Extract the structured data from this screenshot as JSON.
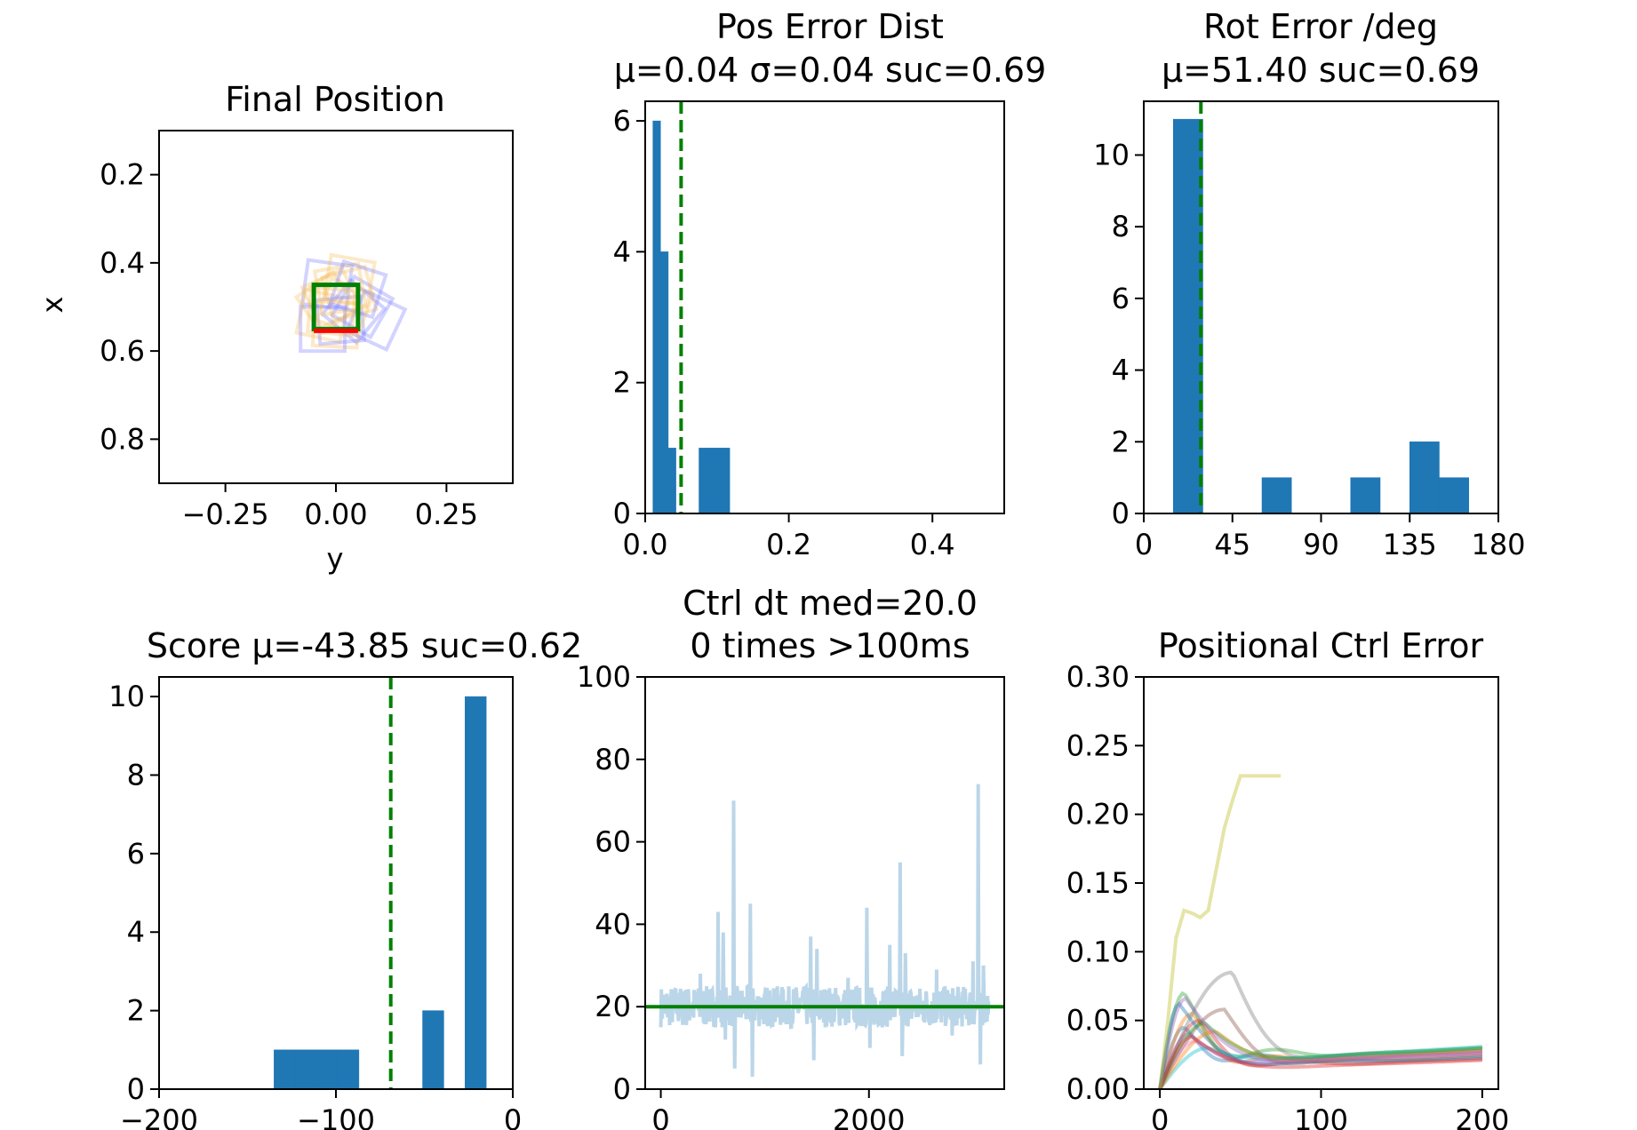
{
  "figure": {
    "background": "#ffffff",
    "bar_color": "#1f77b4",
    "ref_line_color": "#008000"
  },
  "chart_data": [
    {
      "id": "final_position",
      "type": "scatter",
      "title_lines": [
        "Final Position"
      ],
      "xlabel": "y",
      "ylabel": "x",
      "xlim": [
        -0.4,
        0.4
      ],
      "ylim": [
        0.1,
        0.9
      ],
      "y_inverted": true,
      "xticks": [
        -0.25,
        0.0,
        0.25
      ],
      "xtick_labels": [
        "−0.25",
        "0.00",
        "0.25"
      ],
      "yticks": [
        0.2,
        0.4,
        0.6,
        0.8
      ],
      "ytick_labels": [
        "0.2",
        "0.4",
        "0.6",
        "0.8"
      ],
      "goal_square": {
        "center_y": 0.0,
        "center_x": 0.5,
        "size": 0.1,
        "color": "#008000"
      },
      "goal_edge_color": "#ff0000",
      "final_poses": [
        {
          "cy": -0.02,
          "cx": 0.45,
          "angle": 8,
          "color": "#8080ff"
        },
        {
          "cy": 0.03,
          "cx": 0.47,
          "angle": -15,
          "color": "#f5c060"
        },
        {
          "cy": 0.06,
          "cx": 0.5,
          "angle": 30,
          "color": "#8080ff"
        },
        {
          "cy": -0.03,
          "cx": 0.52,
          "angle": 12,
          "color": "#f5c060"
        },
        {
          "cy": 0.01,
          "cx": 0.53,
          "angle": -5,
          "color": "#8080ff"
        },
        {
          "cy": 0.02,
          "cx": 0.5,
          "angle": 20,
          "color": "#f5c060"
        },
        {
          "cy": -0.01,
          "cx": 0.48,
          "angle": -25,
          "color": "#f5c060"
        },
        {
          "cy": 0.04,
          "cx": 0.51,
          "angle": 40,
          "color": "#8080ff"
        },
        {
          "cy": 0.0,
          "cx": 0.54,
          "angle": 3,
          "color": "#f5c060"
        },
        {
          "cy": -0.02,
          "cx": 0.49,
          "angle": -35,
          "color": "#f5c060"
        },
        {
          "cy": 0.03,
          "cx": 0.44,
          "angle": 10,
          "color": "#f5c060"
        },
        {
          "cy": 0.09,
          "cx": 0.53,
          "angle": 25,
          "color": "#8080ff"
        },
        {
          "cy": -0.03,
          "cx": 0.55,
          "angle": 0,
          "color": "#8080ff"
        },
        {
          "cy": 0.01,
          "cx": 0.46,
          "angle": -10,
          "color": "#f5c060"
        },
        {
          "cy": 0.05,
          "cx": 0.46,
          "angle": 18,
          "color": "#8080ff"
        },
        {
          "cy": -0.01,
          "cx": 0.51,
          "angle": 5,
          "color": "#f5c060"
        }
      ]
    },
    {
      "id": "pos_error_dist",
      "type": "bar",
      "title_lines": [
        "Pos Error Dist",
        "μ=0.04 σ=0.04 suc=0.69"
      ],
      "xlim": [
        0.0,
        0.5
      ],
      "ylim": [
        0,
        6.3
      ],
      "xticks": [
        0.0,
        0.2,
        0.4
      ],
      "xtick_labels": [
        "0.0",
        "0.2",
        "0.4"
      ],
      "yticks": [
        0,
        2,
        4,
        6
      ],
      "ytick_labels": [
        "0",
        "2",
        "4",
        "6"
      ],
      "bin_width": 0.0107,
      "bin_left_edges": [
        0.0107,
        0.0214,
        0.0321,
        0.0428,
        0.0535,
        0.0642,
        0.0749,
        0.0856,
        0.0963,
        0.107
      ],
      "counts": [
        6,
        4,
        1,
        0,
        0,
        0,
        1,
        1,
        1,
        1
      ],
      "threshold": 0.05
    },
    {
      "id": "rot_error",
      "type": "bar",
      "title_lines": [
        "Rot Error /deg",
        "μ=51.40 suc=0.69"
      ],
      "xlim": [
        0,
        180
      ],
      "ylim": [
        0,
        11.5
      ],
      "xticks": [
        0,
        45,
        90,
        135,
        180
      ],
      "xtick_labels": [
        "0",
        "45",
        "90",
        "135",
        "180"
      ],
      "yticks": [
        0,
        2,
        4,
        6,
        8,
        10
      ],
      "ytick_labels": [
        "0",
        "2",
        "4",
        "6",
        "8",
        "10"
      ],
      "bin_width": 15,
      "bin_left_edges": [
        15,
        30,
        45,
        60,
        75,
        90,
        105,
        120,
        135,
        150
      ],
      "counts": [
        11,
        0,
        0,
        1,
        0,
        0,
        1,
        0,
        2,
        1
      ],
      "threshold": 29
    },
    {
      "id": "score",
      "type": "bar",
      "title_lines": [
        "Score μ=-43.85 suc=0.62"
      ],
      "xlim": [
        -200,
        0
      ],
      "ylim": [
        0,
        10.5
      ],
      "xticks": [
        -200,
        -100,
        0
      ],
      "xtick_labels": [
        "−200",
        "−100",
        "0"
      ],
      "yticks": [
        0,
        2,
        4,
        6,
        8,
        10
      ],
      "ytick_labels": [
        "0",
        "2",
        "4",
        "6",
        "8",
        "10"
      ],
      "bin_width": 12,
      "bin_left_edges": [
        -135,
        -123,
        -111,
        -99,
        -87,
        -75,
        -63,
        -51,
        -39,
        -27
      ],
      "counts": [
        1,
        1,
        1,
        1,
        0,
        0,
        0,
        2,
        0,
        10
      ],
      "threshold": -69
    },
    {
      "id": "ctrl_dt",
      "type": "line",
      "title_lines": [
        "Ctrl dt med=20.0",
        "0 times >100ms"
      ],
      "xlim": [
        -150,
        3300
      ],
      "ylim": [
        0,
        100
      ],
      "xticks": [
        0,
        2000
      ],
      "xtick_labels": [
        "0",
        "2000"
      ],
      "yticks": [
        0,
        20,
        40,
        60,
        80,
        100
      ],
      "ytick_labels": [
        "0",
        "20",
        "40",
        "60",
        "80",
        "100"
      ],
      "series_color": "#1f77b4",
      "series_opacity": 0.3,
      "x_end": 3150,
      "median": 20.0,
      "spikes": [
        {
          "x": 550,
          "y": 43
        },
        {
          "x": 600,
          "y": 38
        },
        {
          "x": 620,
          "y": 12
        },
        {
          "x": 700,
          "y": 70
        },
        {
          "x": 710,
          "y": 5
        },
        {
          "x": 860,
          "y": 45
        },
        {
          "x": 880,
          "y": 3
        },
        {
          "x": 1440,
          "y": 37
        },
        {
          "x": 1470,
          "y": 7
        },
        {
          "x": 1500,
          "y": 34
        },
        {
          "x": 1980,
          "y": 44
        },
        {
          "x": 2010,
          "y": 10
        },
        {
          "x": 2200,
          "y": 35
        },
        {
          "x": 2300,
          "y": 55
        },
        {
          "x": 2320,
          "y": 8
        },
        {
          "x": 2350,
          "y": 33
        },
        {
          "x": 2650,
          "y": 29
        },
        {
          "x": 2800,
          "y": 13
        },
        {
          "x": 3000,
          "y": 31
        },
        {
          "x": 3050,
          "y": 74
        },
        {
          "x": 3070,
          "y": 6
        },
        {
          "x": 3100,
          "y": 30
        },
        {
          "x": 380,
          "y": 28
        },
        {
          "x": 1800,
          "y": 27
        }
      ]
    },
    {
      "id": "positional_ctrl_error",
      "type": "line",
      "title_lines": [
        "Positional Ctrl Error"
      ],
      "xlim": [
        -10,
        210
      ],
      "ylim": [
        0,
        0.3
      ],
      "xticks": [
        0,
        100,
        200
      ],
      "xtick_labels": [
        "0",
        "100",
        "200"
      ],
      "yticks": [
        0,
        0.05,
        0.1,
        0.15,
        0.2,
        0.25,
        0.3
      ],
      "ytick_labels": [
        "0.00",
        "0.05",
        "0.10",
        "0.15",
        "0.20",
        "0.25",
        "0.30"
      ],
      "series_opacity": 0.4,
      "outlier_series": {
        "color": "#bcbd22",
        "x": [
          0,
          5,
          10,
          15,
          20,
          25,
          30,
          35,
          40,
          45,
          50,
          55,
          60,
          65,
          70,
          75
        ],
        "y": [
          0,
          0.05,
          0.11,
          0.13,
          0.128,
          0.125,
          0.13,
          0.16,
          0.19,
          0.21,
          0.228,
          0.228,
          0.228,
          0.228,
          0.228,
          0.228
        ]
      },
      "series": [
        {
          "color": "#1f77b4",
          "peak": 0.045,
          "peak_x": 15,
          "end": 0.028
        },
        {
          "color": "#ff7f0e",
          "peak": 0.055,
          "peak_x": 20,
          "end": 0.025
        },
        {
          "color": "#2ca02c",
          "peak": 0.07,
          "peak_x": 15,
          "end": 0.03
        },
        {
          "color": "#d62728",
          "peak": 0.05,
          "peak_x": 25,
          "end": 0.022
        },
        {
          "color": "#9467bd",
          "peak": 0.04,
          "peak_x": 18,
          "end": 0.027
        },
        {
          "color": "#8c564b",
          "peak": 0.058,
          "peak_x": 40,
          "end": 0.024
        },
        {
          "color": "#e377c2",
          "peak": 0.035,
          "peak_x": 22,
          "end": 0.026
        },
        {
          "color": "#7f7f7f",
          "peak": 0.085,
          "peak_x": 45,
          "end": 0.029
        },
        {
          "color": "#17becf",
          "peak": 0.03,
          "peak_x": 30,
          "end": 0.031
        },
        {
          "color": "#1f77b4",
          "peak": 0.062,
          "peak_x": 12,
          "end": 0.023
        },
        {
          "color": "#ff7f0e",
          "peak": 0.042,
          "peak_x": 35,
          "end": 0.028
        },
        {
          "color": "#2ca02c",
          "peak": 0.048,
          "peak_x": 28,
          "end": 0.03
        },
        {
          "color": "#d62728",
          "peak": 0.038,
          "peak_x": 20,
          "end": 0.021
        },
        {
          "color": "#9467bd",
          "peak": 0.066,
          "peak_x": 16,
          "end": 0.026
        }
      ]
    }
  ]
}
